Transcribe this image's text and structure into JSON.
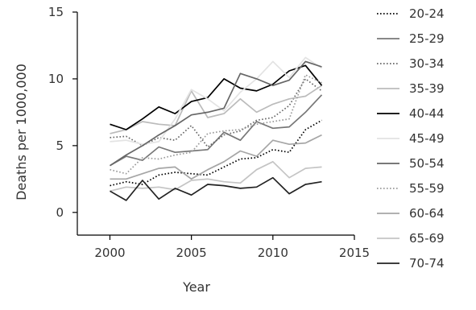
{
  "chart_data": {
    "type": "line",
    "title": "",
    "xlabel": "Year",
    "ylabel": "Deaths per 1000,000",
    "xlim": [
      1998,
      2015
    ],
    "ylim": [
      -1.7,
      15
    ],
    "xticks": [
      2000,
      2005,
      2010,
      2015
    ],
    "xtick_labels": [
      "2000",
      "2005",
      "2010",
      "2015"
    ],
    "yticks": [
      0,
      5,
      10,
      15
    ],
    "ytick_labels": [
      "0",
      "5",
      "10",
      "15"
    ],
    "grid": false,
    "legend_position": "right",
    "x": [
      2000,
      2001,
      2002,
      2003,
      2004,
      2005,
      2006,
      2007,
      2008,
      2009,
      2010,
      2011,
      2012,
      2013
    ],
    "series": [
      {
        "name": "20-24",
        "color": "#000000",
        "dash": "dotted",
        "values": [
          2.0,
          2.3,
          2.1,
          2.8,
          3.0,
          2.9,
          2.8,
          3.4,
          4.0,
          4.1,
          4.7,
          4.5,
          6.2,
          6.9
        ]
      },
      {
        "name": "25-29",
        "color": "#777777",
        "dash": "solid",
        "values": [
          3.5,
          4.2,
          3.9,
          4.9,
          4.5,
          4.6,
          4.7,
          6.0,
          5.4,
          6.8,
          6.3,
          6.4,
          7.5,
          8.8
        ]
      },
      {
        "name": "30-34",
        "color": "#666666",
        "dash": "dotted",
        "values": [
          5.6,
          5.7,
          5.0,
          5.6,
          5.4,
          6.5,
          4.9,
          5.8,
          6.1,
          6.9,
          7.1,
          8.0,
          10.0,
          9.1
        ]
      },
      {
        "name": "35-39",
        "color": "#bbbbbb",
        "dash": "solid",
        "values": [
          5.9,
          6.2,
          6.8,
          6.6,
          6.5,
          9.1,
          7.1,
          7.4,
          8.5,
          7.5,
          8.1,
          8.5,
          8.7,
          9.5
        ]
      },
      {
        "name": "40-44",
        "color": "#000000",
        "dash": "solid",
        "values": [
          6.6,
          6.2,
          7.0,
          7.9,
          7.4,
          8.3,
          8.6,
          10.0,
          9.3,
          9.1,
          9.6,
          10.6,
          11.0,
          9.5
        ]
      },
      {
        "name": "45-49",
        "color": "#e3e3e3",
        "dash": "solid",
        "values": [
          5.3,
          5.4,
          5.1,
          5.3,
          7.0,
          9.2,
          8.5,
          7.6,
          9.0,
          10.0,
          11.3,
          10.1,
          11.6,
          10.8
        ]
      },
      {
        "name": "50-54",
        "color": "#666666",
        "dash": "solid",
        "values": [
          3.5,
          4.3,
          5.0,
          5.8,
          6.5,
          7.3,
          7.5,
          7.8,
          10.4,
          10.0,
          9.5,
          9.9,
          11.3,
          10.9
        ]
      },
      {
        "name": "55-59",
        "color": "#999999",
        "dash": "dotted",
        "values": [
          3.2,
          2.9,
          4.1,
          4.0,
          4.3,
          4.5,
          5.9,
          6.1,
          6.2,
          6.6,
          6.8,
          7.0,
          10.3,
          9.7
        ]
      },
      {
        "name": "60-64",
        "color": "#a6a6a6",
        "dash": "solid",
        "values": [
          2.5,
          2.5,
          2.9,
          3.3,
          3.4,
          2.5,
          3.2,
          3.8,
          4.6,
          4.2,
          5.4,
          5.1,
          5.2,
          5.8
        ]
      },
      {
        "name": "65-69",
        "color": "#c4c4c4",
        "dash": "solid",
        "values": [
          1.6,
          1.9,
          1.8,
          1.9,
          1.7,
          2.4,
          2.5,
          2.3,
          2.2,
          3.2,
          3.8,
          2.6,
          3.3,
          3.4
        ]
      },
      {
        "name": "70-74",
        "color": "#222222",
        "dash": "solid",
        "values": [
          1.6,
          0.9,
          2.4,
          1.0,
          1.8,
          1.3,
          2.1,
          2.0,
          1.8,
          1.9,
          2.6,
          1.4,
          2.1,
          2.3
        ]
      }
    ]
  }
}
